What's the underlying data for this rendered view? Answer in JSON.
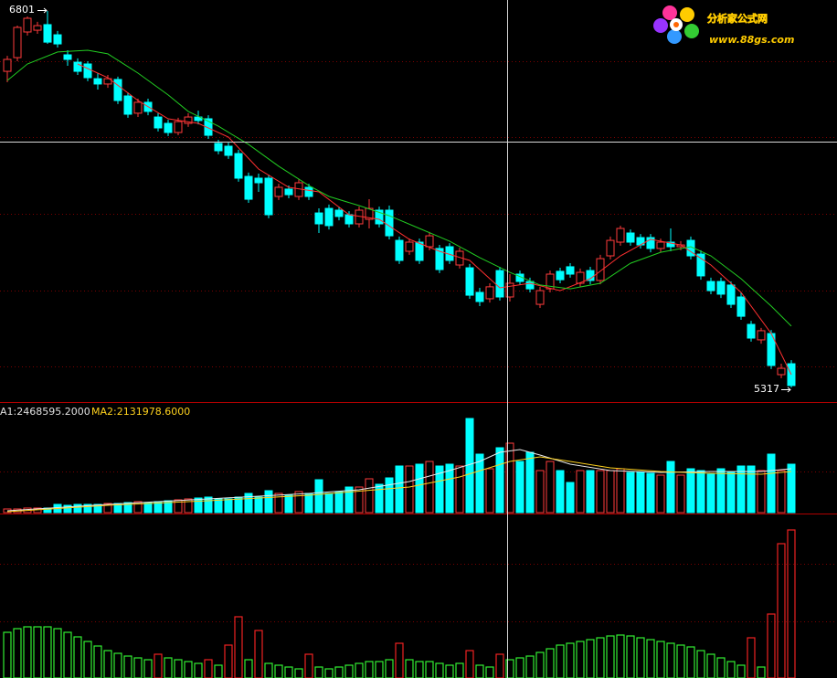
{
  "chart_data": [
    {
      "type": "candlestick",
      "ylim": [
        5260,
        6844
      ],
      "up_color": "#ff3c3c",
      "down_color": "#00ffff",
      "annotations": {
        "high": 6801,
        "low": 5317
      },
      "open": [
        6563,
        6617,
        6718,
        6725,
        6747,
        6707,
        6628,
        6599,
        6592,
        6534,
        6513,
        6531,
        6466,
        6398,
        6441,
        6383,
        6358,
        6322,
        6358,
        6383,
        6376,
        6279,
        6268,
        6239,
        6149,
        6142,
        6142,
        6070,
        6099,
        6070,
        6106,
        6005,
        6023,
        6016,
        5998,
        5962,
        5980,
        6016,
        6016,
        5897,
        5854,
        5890,
        5872,
        5865,
        5872,
        5800,
        5789,
        5692,
        5667,
        5778,
        5674,
        5764,
        5735,
        5645,
        5706,
        5775,
        5793,
        5728,
        5778,
        5739,
        5836,
        5890,
        5926,
        5908,
        5908,
        5865,
        5890,
        5872,
        5897,
        5843,
        5735,
        5735,
        5721,
        5674,
        5566,
        5505,
        5530,
        5368,
        5411
      ],
      "high": [
        6624,
        6743,
        6779,
        6758,
        6801,
        6722,
        6646,
        6614,
        6603,
        6556,
        6549,
        6542,
        6480,
        6455,
        6455,
        6398,
        6372,
        6380,
        6398,
        6408,
        6390,
        6293,
        6282,
        6254,
        6164,
        6160,
        6156,
        6120,
        6113,
        6138,
        6120,
        6023,
        6038,
        6030,
        6012,
        6030,
        6059,
        6030,
        6034,
        5912,
        5904,
        5904,
        5930,
        5879,
        5886,
        5868,
        5804,
        5710,
        5728,
        5793,
        5764,
        5778,
        5750,
        5714,
        5778,
        5789,
        5807,
        5786,
        5793,
        5840,
        5912,
        5955,
        5940,
        5922,
        5922,
        5904,
        5944,
        5894,
        5912,
        5858,
        5750,
        5750,
        5735,
        5692,
        5580,
        5552,
        5544,
        5411,
        5425
      ],
      "low": [
        6520,
        6603,
        6704,
        6711,
        6671,
        6657,
        6585,
        6549,
        6524,
        6491,
        6498,
        6434,
        6380,
        6383,
        6390,
        6326,
        6308,
        6311,
        6344,
        6354,
        6297,
        6236,
        6218,
        6128,
        6045,
        6088,
        5984,
        6056,
        6063,
        6056,
        6056,
        5926,
        5940,
        5976,
        5948,
        5948,
        5944,
        5948,
        5901,
        5804,
        5840,
        5804,
        5858,
        5768,
        5804,
        5786,
        5667,
        5638,
        5652,
        5660,
        5656,
        5721,
        5692,
        5631,
        5692,
        5728,
        5750,
        5714,
        5724,
        5724,
        5822,
        5876,
        5876,
        5865,
        5850,
        5850,
        5854,
        5858,
        5822,
        5742,
        5685,
        5670,
        5631,
        5584,
        5498,
        5490,
        5390,
        5354,
        5317
      ],
      "close": [
        6610,
        6736,
        6772,
        6743,
        6678,
        6671,
        6610,
        6563,
        6538,
        6513,
        6534,
        6448,
        6394,
        6441,
        6405,
        6340,
        6322,
        6365,
        6383,
        6369,
        6311,
        6250,
        6232,
        6142,
        6059,
        6124,
        5998,
        6106,
        6077,
        6124,
        6070,
        5962,
        5955,
        5991,
        5962,
        6016,
        6023,
        5962,
        5915,
        5818,
        5890,
        5818,
        5915,
        5782,
        5818,
        5854,
        5681,
        5656,
        5714,
        5674,
        5728,
        5735,
        5706,
        5699,
        5764,
        5742,
        5764,
        5771,
        5739,
        5825,
        5897,
        5944,
        5890,
        5879,
        5865,
        5890,
        5872,
        5879,
        5836,
        5757,
        5699,
        5685,
        5645,
        5598,
        5512,
        5541,
        5404,
        5393,
        5325
      ],
      "lines": [
        {
          "color": "#ff3030",
          "x": [
            7,
            10,
            13,
            16,
            19,
            22,
            25,
            28,
            31,
            34,
            37,
            40,
            43,
            46,
            49,
            52,
            55,
            58,
            61,
            64,
            67,
            70,
            73,
            76,
            78
          ],
          "values": [
            6592,
            6538,
            6448,
            6376,
            6358,
            6304,
            6178,
            6106,
            6088,
            5998,
            5980,
            5901,
            5854,
            5818,
            5710,
            5728,
            5699,
            5746,
            5836,
            5901,
            5879,
            5800,
            5692,
            5530,
            5368
          ]
        },
        {
          "color": "#22cc22",
          "x": [
            0,
            2,
            5,
            8,
            10,
            13,
            16,
            18,
            21,
            24,
            27,
            30,
            32,
            35,
            38,
            41,
            44,
            47,
            50,
            53,
            56,
            59,
            62,
            65,
            68,
            70,
            73,
            76,
            78
          ],
          "values": [
            6527,
            6592,
            6639,
            6646,
            6632,
            6556,
            6470,
            6405,
            6347,
            6275,
            6189,
            6113,
            6070,
            6034,
            5994,
            5944,
            5894,
            5829,
            5771,
            5721,
            5706,
            5728,
            5807,
            5850,
            5872,
            5836,
            5746,
            5638,
            5559
          ]
        }
      ]
    },
    {
      "type": "volume",
      "ylim": [
        0,
        6480000
      ],
      "ma_labels": [
        {
          "text": "A1:2468595.2000",
          "color": "#e0e0e0"
        },
        {
          "text": "MA2:2131978.6000",
          "color": "#ffd21e"
        }
      ],
      "values": [
        216000,
        216000,
        270000,
        270000,
        270000,
        486000,
        432000,
        486000,
        486000,
        486000,
        540000,
        540000,
        594000,
        648000,
        594000,
        648000,
        702000,
        756000,
        810000,
        864000,
        918000,
        810000,
        810000,
        918000,
        1134000,
        918000,
        1296000,
        1134000,
        1026000,
        1242000,
        1134000,
        1944000,
        1134000,
        1242000,
        1512000,
        1512000,
        1998000,
        1674000,
        2052000,
        2754000,
        2754000,
        2862000,
        3024000,
        2754000,
        2862000,
        2754000,
        5562000,
        3456000,
        2592000,
        3834000,
        4104000,
        3024000,
        3564000,
        2484000,
        3024000,
        2484000,
        1782000,
        2484000,
        2484000,
        2484000,
        2484000,
        2592000,
        2376000,
        2376000,
        2322000,
        2214000,
        3024000,
        2214000,
        2592000,
        2484000,
        2268000,
        2592000,
        2376000,
        2754000,
        2754000,
        2484000,
        3456000,
        2484000,
        2862000
      ],
      "lines": [
        {
          "color": "#e8e8e8",
          "x": [
            0,
            10,
            20,
            30,
            35,
            40,
            44,
            47,
            49,
            51,
            53,
            56,
            60,
            65,
            70,
            75,
            78
          ],
          "values": [
            108000,
            486000,
            810000,
            1134000,
            1350000,
            1836000,
            2484000,
            3024000,
            3564000,
            3726000,
            3402000,
            2862000,
            2484000,
            2376000,
            2430000,
            2430000,
            2592000
          ]
        },
        {
          "color": "#ffd21e",
          "x": [
            0,
            10,
            20,
            30,
            40,
            45,
            50,
            53,
            56,
            60,
            65,
            70,
            75,
            78
          ],
          "values": [
            54000,
            432000,
            702000,
            1026000,
            1512000,
            2106000,
            3024000,
            3294000,
            3024000,
            2646000,
            2430000,
            2322000,
            2268000,
            2430000
          ]
        }
      ]
    },
    {
      "type": "indicator",
      "ylim": [
        0,
        179
      ],
      "values": [
        50,
        54,
        56,
        56,
        56,
        54,
        50,
        45,
        40,
        35,
        30,
        27,
        24,
        22,
        20,
        26,
        22,
        20,
        18,
        16,
        20,
        14,
        36,
        67,
        20,
        52,
        16,
        14,
        12,
        10,
        26,
        12,
        10,
        12,
        14,
        16,
        18,
        18,
        20,
        38,
        20,
        18,
        18,
        16,
        14,
        16,
        30,
        14,
        12,
        26,
        20,
        22,
        24,
        28,
        32,
        36,
        38,
        40,
        42,
        44,
        46,
        47,
        46,
        44,
        42,
        40,
        38,
        36,
        34,
        30,
        26,
        22,
        18,
        14,
        44,
        12,
        70,
        147,
        162
      ],
      "colors": [
        "#33ee33",
        "#33ee33",
        "#33ee33",
        "#33ee33",
        "#33ee33",
        "#33ee33",
        "#33ee33",
        "#33ee33",
        "#33ee33",
        "#33ee33",
        "#33ee33",
        "#33ee33",
        "#33ee33",
        "#33ee33",
        "#33ee33",
        "#ee2222",
        "#33ee33",
        "#33ee33",
        "#33ee33",
        "#33ee33",
        "#ee2222",
        "#33ee33",
        "#ee2222",
        "#ee2222",
        "#33ee33",
        "#ee2222",
        "#33ee33",
        "#33ee33",
        "#33ee33",
        "#33ee33",
        "#ee2222",
        "#33ee33",
        "#33ee33",
        "#33ee33",
        "#33ee33",
        "#33ee33",
        "#33ee33",
        "#33ee33",
        "#33ee33",
        "#ee2222",
        "#33ee33",
        "#33ee33",
        "#33ee33",
        "#33ee33",
        "#33ee33",
        "#33ee33",
        "#ee2222",
        "#33ee33",
        "#33ee33",
        "#ee2222",
        "#33ee33",
        "#33ee33",
        "#33ee33",
        "#33ee33",
        "#33ee33",
        "#33ee33",
        "#33ee33",
        "#33ee33",
        "#33ee33",
        "#33ee33",
        "#33ee33",
        "#33ee33",
        "#33ee33",
        "#33ee33",
        "#33ee33",
        "#33ee33",
        "#33ee33",
        "#33ee33",
        "#33ee33",
        "#33ee33",
        "#33ee33",
        "#33ee33",
        "#33ee33",
        "#33ee33",
        "#ee2222",
        "#33ee33",
        "#ee2222",
        "#ee2222",
        "#ee2222"
      ]
    }
  ],
  "logo": {
    "title": "分析家公式网",
    "url": "www.88gs.com"
  }
}
